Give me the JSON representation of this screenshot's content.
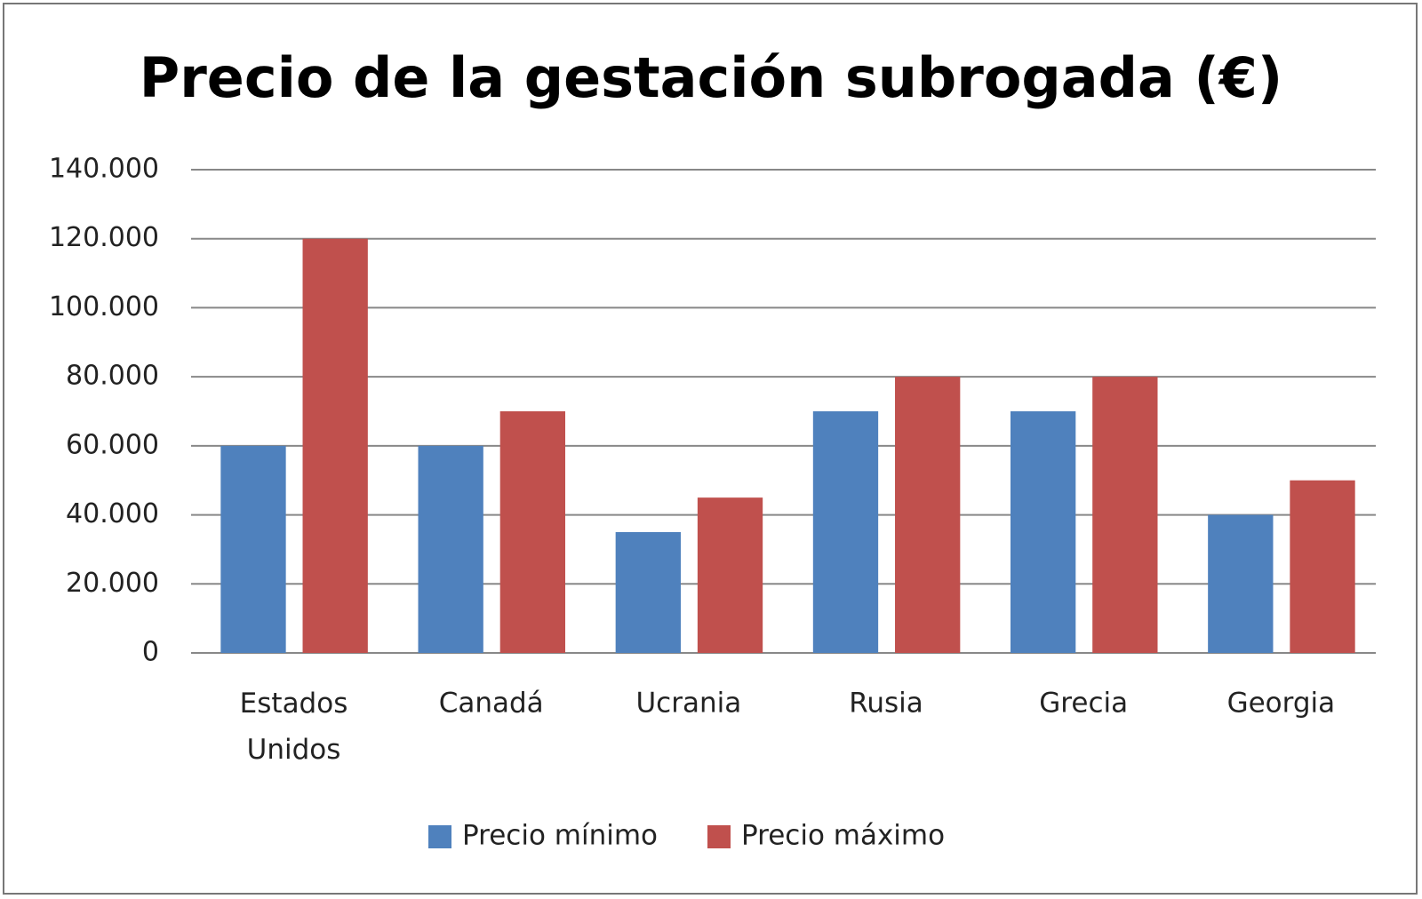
{
  "chart_data": {
    "type": "bar",
    "title": "Precio de la gestación subrogada (€)",
    "categories": [
      "Estados Unidos",
      "Canadá",
      "Ucrania",
      "Rusia",
      "Grecia",
      "Georgia"
    ],
    "series": [
      {
        "name": "Precio mínimo",
        "color": "#4f81bd",
        "values": [
          60000,
          60000,
          35000,
          70000,
          70000,
          40000
        ]
      },
      {
        "name": "Precio máximo",
        "color": "#c0504d",
        "values": [
          120000,
          70000,
          45000,
          80000,
          80000,
          50000
        ]
      }
    ],
    "ylim": [
      0,
      140000
    ],
    "yticks": [
      0,
      {
        "value": 20000,
        "label": "20.000"
      },
      {
        "value": 40000,
        "label": "40.000"
      },
      {
        "value": 60000,
        "label": "60.000"
      },
      {
        "value": 80000,
        "label": "80.000"
      },
      {
        "value": 100000,
        "label": "100.000"
      },
      {
        "value": 120000,
        "label": "120.000"
      },
      {
        "value": 140000,
        "label": "140.000"
      }
    ],
    "grid": true,
    "legend": "bottom"
  }
}
